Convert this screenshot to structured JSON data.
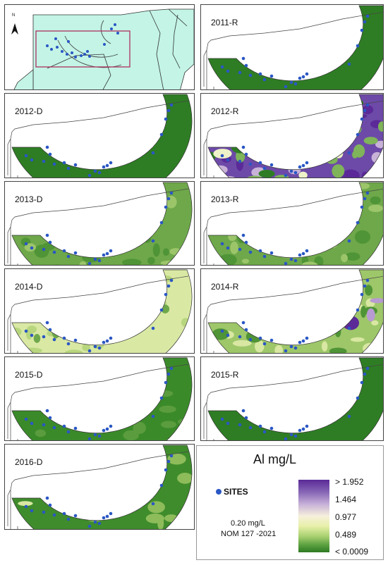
{
  "inset": {
    "north_label": "N"
  },
  "panels": [
    {
      "label": "2011-R",
      "scheme": "dark"
    },
    {
      "label": "2012-D",
      "scheme": "dark"
    },
    {
      "label": "2012-R",
      "scheme": "purple"
    },
    {
      "label": "2013-D",
      "scheme": "mid"
    },
    {
      "label": "2013-R",
      "scheme": "mid"
    },
    {
      "label": "2014-D",
      "scheme": "light"
    },
    {
      "label": "2014-R",
      "scheme": "mixed"
    },
    {
      "label": "2015-D",
      "scheme": "dark2"
    },
    {
      "label": "2015-R",
      "scheme": "dark"
    },
    {
      "label": "2016-D",
      "scheme": "dark2b"
    }
  ],
  "legend": {
    "title": "Al mg/L",
    "sites_label": "SITES",
    "nom_value": "0.20 mg/L",
    "nom_label": "NOM 127 -2021",
    "ticks": [
      "> 1.952",
      "1.464",
      "0.977",
      "0.489",
      "< 0.0009"
    ]
  },
  "colors": {
    "dark": "#2e7d24",
    "mid": "#6ea84a",
    "light": "#d8e7a2",
    "purple": "#5b2a98",
    "site": "#2a57c4",
    "sea": "#bff5e6"
  }
}
